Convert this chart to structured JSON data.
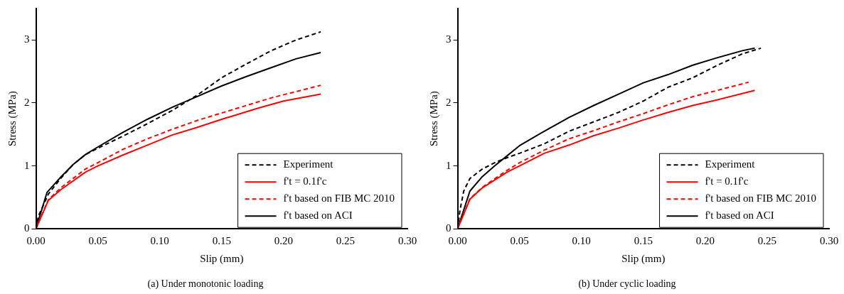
{
  "chart_data": [
    {
      "type": "line",
      "title": "(a) Under monotonic loading",
      "xlabel": "Slip (mm)",
      "ylabel": "Stress (MPa)",
      "xlim": [
        0,
        0.3
      ],
      "ylim": [
        0,
        3.5
      ],
      "xticks": [
        {
          "value": 0,
          "label": "0.00"
        },
        {
          "value": 0.05,
          "label": "0.05"
        },
        {
          "value": 0.1,
          "label": "0.10"
        },
        {
          "value": 0.15,
          "label": "0.15"
        },
        {
          "value": 0.2,
          "label": "0.20"
        },
        {
          "value": 0.25,
          "label": "0.25"
        },
        {
          "value": 0.3,
          "label": "0.30"
        }
      ],
      "yticks": [
        0,
        1,
        2,
        3
      ],
      "legend": "bottom right",
      "grid": false,
      "marker": "none",
      "series": [
        {
          "name": "Experiment",
          "color": "#000000",
          "line_style": "dashed",
          "x": [
            0,
            0.002,
            0.01,
            0.02,
            0.03,
            0.04,
            0.05,
            0.07,
            0.09,
            0.11,
            0.13,
            0.15,
            0.17,
            0.19,
            0.21,
            0.23
          ],
          "values": [
            0,
            0.2,
            0.55,
            0.8,
            1.02,
            1.18,
            1.28,
            1.47,
            1.67,
            1.88,
            2.12,
            2.4,
            2.62,
            2.83,
            3.0,
            3.13
          ]
        },
        {
          "name": "f't = 0.1f'c",
          "color": "#ff0000",
          "line_style": "solid",
          "x": [
            0,
            0.01,
            0.02,
            0.04,
            0.05,
            0.07,
            0.09,
            0.11,
            0.13,
            0.15,
            0.16,
            0.18,
            0.2,
            0.23
          ],
          "values": [
            0,
            0.45,
            0.62,
            0.9,
            1.0,
            1.17,
            1.33,
            1.49,
            1.61,
            1.74,
            1.8,
            1.92,
            2.03,
            2.14
          ]
        },
        {
          "name": "f't based on FIB MC 2010",
          "color": "#ff0000",
          "line_style": "dashed",
          "x": [
            0,
            0.01,
            0.02,
            0.04,
            0.05,
            0.07,
            0.09,
            0.11,
            0.13,
            0.15,
            0.17,
            0.19,
            0.21,
            0.23
          ],
          "values": [
            0,
            0.46,
            0.65,
            0.95,
            1.05,
            1.26,
            1.43,
            1.58,
            1.72,
            1.84,
            1.96,
            2.08,
            2.18,
            2.28
          ]
        },
        {
          "name": "f't based on ACI",
          "color": "#000000",
          "line_style": "solid",
          "x": [
            0,
            0.009,
            0.02,
            0.03,
            0.04,
            0.05,
            0.07,
            0.09,
            0.11,
            0.13,
            0.15,
            0.17,
            0.19,
            0.21,
            0.23
          ],
          "values": [
            0,
            0.58,
            0.82,
            1.02,
            1.18,
            1.3,
            1.53,
            1.74,
            1.93,
            2.1,
            2.27,
            2.42,
            2.56,
            2.7,
            2.8
          ]
        }
      ]
    },
    {
      "type": "line",
      "title": "(b) Under cyclic loading",
      "xlabel": "Slip (mm)",
      "ylabel": "Stress (MPa)",
      "xlim": [
        0,
        0.3
      ],
      "ylim": [
        0,
        3.5
      ],
      "xticks": [
        {
          "value": 0,
          "label": "0.00"
        },
        {
          "value": 0.05,
          "label": "0.05"
        },
        {
          "value": 0.1,
          "label": "0.10"
        },
        {
          "value": 0.15,
          "label": "0.15"
        },
        {
          "value": 0.2,
          "label": "0.20"
        },
        {
          "value": 0.25,
          "label": "0.25"
        },
        {
          "value": 0.3,
          "label": "0.30"
        }
      ],
      "yticks": [
        0,
        1,
        2,
        3
      ],
      "legend": "bottom right",
      "grid": false,
      "marker": "none",
      "series": [
        {
          "name": "Experiment",
          "color": "#000000",
          "line_style": "dashed",
          "x": [
            0,
            0.002,
            0.005,
            0.01,
            0.02,
            0.03,
            0.04,
            0.05,
            0.07,
            0.09,
            0.11,
            0.13,
            0.15,
            0.17,
            0.19,
            0.21,
            0.23,
            0.245
          ],
          "values": [
            0,
            0.3,
            0.6,
            0.8,
            0.95,
            1.05,
            1.13,
            1.2,
            1.35,
            1.55,
            1.7,
            1.85,
            2.03,
            2.25,
            2.4,
            2.6,
            2.78,
            2.87
          ]
        },
        {
          "name": "f't = 0.1f'c",
          "color": "#ff0000",
          "line_style": "solid",
          "x": [
            0,
            0.01,
            0.02,
            0.04,
            0.05,
            0.07,
            0.09,
            0.11,
            0.13,
            0.15,
            0.17,
            0.19,
            0.21,
            0.24
          ],
          "values": [
            0,
            0.47,
            0.65,
            0.9,
            1.0,
            1.2,
            1.33,
            1.48,
            1.6,
            1.73,
            1.85,
            1.96,
            2.05,
            2.2
          ]
        },
        {
          "name": "f't based on FIB MC 2010",
          "color": "#ff0000",
          "line_style": "dashed",
          "x": [
            0,
            0.01,
            0.02,
            0.04,
            0.05,
            0.07,
            0.09,
            0.11,
            0.13,
            0.15,
            0.17,
            0.19,
            0.21,
            0.235
          ],
          "values": [
            0,
            0.48,
            0.66,
            0.93,
            1.05,
            1.25,
            1.43,
            1.56,
            1.7,
            1.83,
            1.97,
            2.1,
            2.2,
            2.33
          ]
        },
        {
          "name": "f't based on ACI",
          "color": "#000000",
          "line_style": "solid",
          "x": [
            0,
            0.01,
            0.02,
            0.03,
            0.04,
            0.05,
            0.07,
            0.09,
            0.11,
            0.13,
            0.15,
            0.17,
            0.19,
            0.21,
            0.23,
            0.24
          ],
          "values": [
            0,
            0.6,
            0.83,
            1.0,
            1.16,
            1.32,
            1.55,
            1.77,
            1.96,
            2.14,
            2.32,
            2.45,
            2.6,
            2.72,
            2.83,
            2.87
          ]
        }
      ]
    }
  ]
}
